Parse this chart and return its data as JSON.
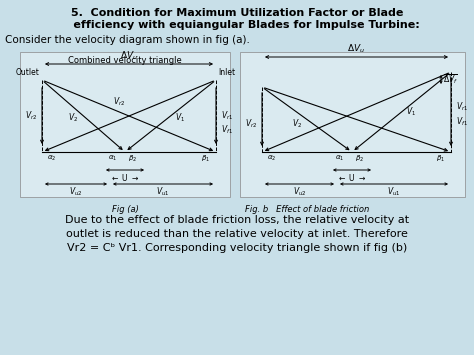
{
  "title_line1": "5.  Condition for Maximum Utilization Factor or Blade",
  "title_line2": "     efficiency with equiangular Blades for Impulse Turbine:",
  "subtitle": "Consider the velocity diagram shown in fig (a).",
  "fig_a_label": "Combined velocity triangle",
  "fig_a_caption": "Fig (a)",
  "fig_b_caption": "Fig. b",
  "fig_b_effect": "Effect of blade friction",
  "bottom_text1": "Due to the effect of blade friction loss, the relative velocity at",
  "bottom_text2": "outlet is reduced than the relative velocity at inlet. Therefore",
  "bottom_text3": "Vr2 = Cᵇ Vr1. Corresponding velocity triangle shown if fig (b)",
  "bg_color": "#c8dfe8",
  "panel_bg": "#daeaf0",
  "lc": "#000000"
}
